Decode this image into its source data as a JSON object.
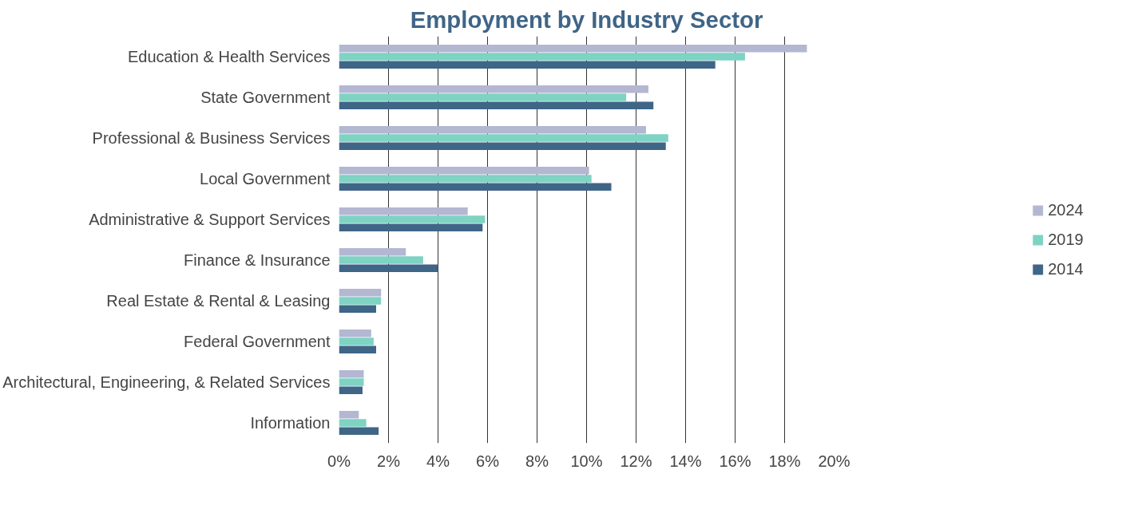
{
  "chart_data": {
    "type": "bar",
    "orientation": "horizontal",
    "title": "Employment by Industry Sector",
    "categories": [
      "Education & Health Services",
      "State Government",
      "Professional & Business Services",
      "Local Government",
      "Administrative & Support Services",
      "Finance & Insurance",
      "Real Estate & Rental & Leasing",
      "Federal Government",
      "Architectural, Engineering, & Related Services",
      "Information"
    ],
    "series": [
      {
        "name": "2024",
        "color": "#b4b7d2",
        "values": [
          18.9,
          12.5,
          12.4,
          10.1,
          5.2,
          2.7,
          1.7,
          1.3,
          1.0,
          0.8
        ]
      },
      {
        "name": "2019",
        "color": "#7ed3c3",
        "values": [
          16.4,
          11.6,
          13.3,
          10.2,
          5.9,
          3.4,
          1.7,
          1.4,
          1.0,
          1.1
        ]
      },
      {
        "name": "2014",
        "color": "#3f6587",
        "values": [
          15.2,
          12.7,
          13.2,
          11.0,
          5.8,
          4.0,
          1.5,
          1.5,
          0.95,
          1.6
        ]
      }
    ],
    "xlim": [
      0,
      20
    ],
    "xticks": [
      {
        "value": 0,
        "label": "0%"
      },
      {
        "value": 2,
        "label": "2%"
      },
      {
        "value": 4,
        "label": "4%"
      },
      {
        "value": 6,
        "label": "6%"
      },
      {
        "value": 8,
        "label": "8%"
      },
      {
        "value": 10,
        "label": "10%"
      },
      {
        "value": 12,
        "label": "12%"
      },
      {
        "value": 14,
        "label": "14%"
      },
      {
        "value": 16,
        "label": "16%"
      },
      {
        "value": 18,
        "label": "18%"
      },
      {
        "value": 20,
        "label": "20%"
      }
    ],
    "grid": "x",
    "legend": "right"
  }
}
